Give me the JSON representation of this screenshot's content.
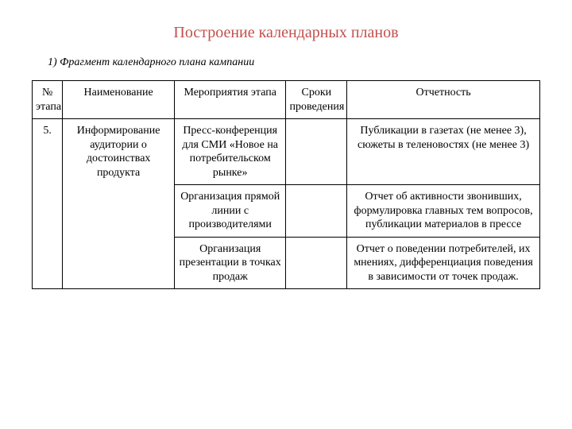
{
  "title": "Построение календарных планов",
  "subtitle": "1) Фрагмент календарного плана кампании",
  "table": {
    "headers": {
      "col0": "№ этапа",
      "col1": "Наименование",
      "col2": "Мероприятия этапа",
      "col3": "Сроки проведения",
      "col4": "Отчетность"
    },
    "stage_number": "5.",
    "stage_name": "Информирование аудитории о достоинствах продукта",
    "rows": [
      {
        "activity": "Пресс-конференция для СМИ «Новое на потребительском рынке»",
        "dates": "",
        "report": "Публикации в газетах (не менее 3),  сюжеты в теленовостях (не менее 3)"
      },
      {
        "activity": "Организация прямой линии с производителями",
        "dates": "",
        "report": "Отчет об активности звонивших, формулировка главных тем вопросов, публикации материалов в прессе"
      },
      {
        "activity": "Организация презентации в точках продаж",
        "dates": "",
        "report": "Отчет о поведении потребителей, их мнениях, дифференциация поведения в зависимости от точек продаж."
      }
    ]
  },
  "styling": {
    "title_color": "#c0504d",
    "text_color": "#000000",
    "border_color": "#000000",
    "background_color": "#ffffff",
    "title_fontsize": 20,
    "body_fontsize": 14,
    "subtitle_fontsize": 14,
    "font_family": "Times New Roman",
    "col_widths_pct": [
      6,
      22,
      22,
      12,
      38
    ]
  }
}
